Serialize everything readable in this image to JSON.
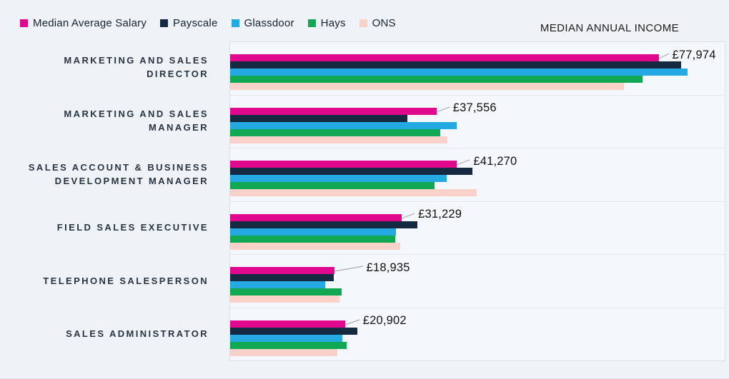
{
  "chart_data": {
    "type": "bar",
    "orientation": "horizontal",
    "title": "MEDIAN ANNUAL INCOME",
    "categories": [
      "MARKETING AND SALES DIRECTOR",
      "MARKETING AND SALES MANAGER",
      "SALES ACCOUNT & BUSINESS DEVELOPMENT MANAGER",
      "FIELD SALES EXECUTIVE",
      "TELEPHONE SALESPERSON",
      "SALES ADMINISTRATOR"
    ],
    "series": [
      {
        "name": "Median Average Salary",
        "color": "#E0088C",
        "values": [
          77974,
          37556,
          41270,
          31229,
          18935,
          20902
        ]
      },
      {
        "name": "Payscale",
        "color": "#152940",
        "values": [
          82100,
          32300,
          44100,
          34100,
          18800,
          23200
        ]
      },
      {
        "name": "Glassdoor",
        "color": "#24A9E2",
        "values": [
          83200,
          41200,
          39400,
          30200,
          17300,
          20400
        ]
      },
      {
        "name": "Hays",
        "color": "#10A852",
        "values": [
          75000,
          38200,
          37200,
          30100,
          20300,
          21200
        ]
      },
      {
        "name": "ONS",
        "color": "#FBD2CA",
        "values": [
          71600,
          39600,
          44900,
          31000,
          19900,
          19500
        ]
      }
    ],
    "data_labels": [
      "£77,974",
      "£37,556",
      "£41,270",
      "£31,229",
      "£18,935",
      "£20,902"
    ],
    "data_label_series": "Median Average Salary",
    "xlim": [
      0,
      90000
    ],
    "legend_position": "top-left",
    "grid": "horizontal category separators"
  },
  "colors": {
    "page_background": "#EFF3F8",
    "plot_background": "#F4F7FB",
    "plot_border": "#D9E0E8",
    "row_separator": "#E3E9EF",
    "category_text": "#2A3440",
    "value_text": "#101010",
    "leader_line": "#A6ACB3"
  }
}
